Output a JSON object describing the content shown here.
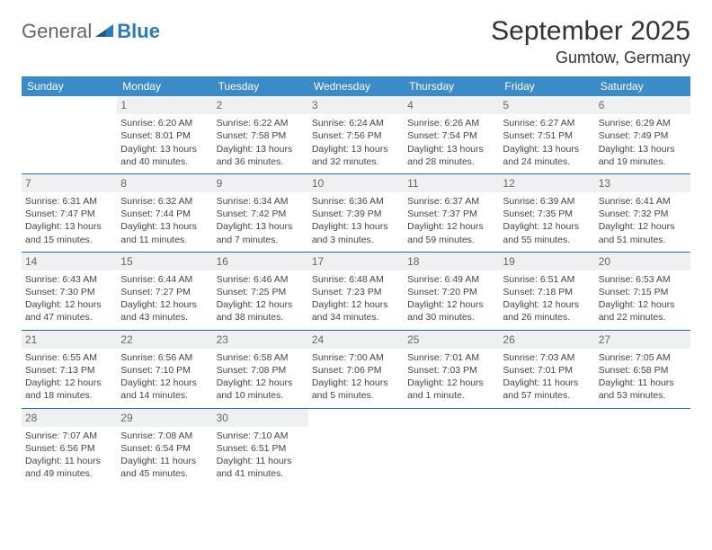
{
  "brand": {
    "part1": "General",
    "part2": "Blue"
  },
  "title": "September 2025",
  "location": "Gumtow, Germany",
  "colors": {
    "header_bg": "#3b8bc9",
    "header_fg": "#ffffff",
    "row_divider": "#2a6a9e",
    "daynum_bg": "#eef0f1",
    "daynum_fg": "#666666",
    "body_text": "#444444",
    "brand_gray": "#666666",
    "brand_blue": "#2a7ab8"
  },
  "weekdays": [
    "Sunday",
    "Monday",
    "Tuesday",
    "Wednesday",
    "Thursday",
    "Friday",
    "Saturday"
  ],
  "weeks": [
    [
      null,
      {
        "n": "1",
        "sunrise": "Sunrise: 6:20 AM",
        "sunset": "Sunset: 8:01 PM",
        "day1": "Daylight: 13 hours",
        "day2": "and 40 minutes."
      },
      {
        "n": "2",
        "sunrise": "Sunrise: 6:22 AM",
        "sunset": "Sunset: 7:58 PM",
        "day1": "Daylight: 13 hours",
        "day2": "and 36 minutes."
      },
      {
        "n": "3",
        "sunrise": "Sunrise: 6:24 AM",
        "sunset": "Sunset: 7:56 PM",
        "day1": "Daylight: 13 hours",
        "day2": "and 32 minutes."
      },
      {
        "n": "4",
        "sunrise": "Sunrise: 6:26 AM",
        "sunset": "Sunset: 7:54 PM",
        "day1": "Daylight: 13 hours",
        "day2": "and 28 minutes."
      },
      {
        "n": "5",
        "sunrise": "Sunrise: 6:27 AM",
        "sunset": "Sunset: 7:51 PM",
        "day1": "Daylight: 13 hours",
        "day2": "and 24 minutes."
      },
      {
        "n": "6",
        "sunrise": "Sunrise: 6:29 AM",
        "sunset": "Sunset: 7:49 PM",
        "day1": "Daylight: 13 hours",
        "day2": "and 19 minutes."
      }
    ],
    [
      {
        "n": "7",
        "sunrise": "Sunrise: 6:31 AM",
        "sunset": "Sunset: 7:47 PM",
        "day1": "Daylight: 13 hours",
        "day2": "and 15 minutes."
      },
      {
        "n": "8",
        "sunrise": "Sunrise: 6:32 AM",
        "sunset": "Sunset: 7:44 PM",
        "day1": "Daylight: 13 hours",
        "day2": "and 11 minutes."
      },
      {
        "n": "9",
        "sunrise": "Sunrise: 6:34 AM",
        "sunset": "Sunset: 7:42 PM",
        "day1": "Daylight: 13 hours",
        "day2": "and 7 minutes."
      },
      {
        "n": "10",
        "sunrise": "Sunrise: 6:36 AM",
        "sunset": "Sunset: 7:39 PM",
        "day1": "Daylight: 13 hours",
        "day2": "and 3 minutes."
      },
      {
        "n": "11",
        "sunrise": "Sunrise: 6:37 AM",
        "sunset": "Sunset: 7:37 PM",
        "day1": "Daylight: 12 hours",
        "day2": "and 59 minutes."
      },
      {
        "n": "12",
        "sunrise": "Sunrise: 6:39 AM",
        "sunset": "Sunset: 7:35 PM",
        "day1": "Daylight: 12 hours",
        "day2": "and 55 minutes."
      },
      {
        "n": "13",
        "sunrise": "Sunrise: 6:41 AM",
        "sunset": "Sunset: 7:32 PM",
        "day1": "Daylight: 12 hours",
        "day2": "and 51 minutes."
      }
    ],
    [
      {
        "n": "14",
        "sunrise": "Sunrise: 6:43 AM",
        "sunset": "Sunset: 7:30 PM",
        "day1": "Daylight: 12 hours",
        "day2": "and 47 minutes."
      },
      {
        "n": "15",
        "sunrise": "Sunrise: 6:44 AM",
        "sunset": "Sunset: 7:27 PM",
        "day1": "Daylight: 12 hours",
        "day2": "and 43 minutes."
      },
      {
        "n": "16",
        "sunrise": "Sunrise: 6:46 AM",
        "sunset": "Sunset: 7:25 PM",
        "day1": "Daylight: 12 hours",
        "day2": "and 38 minutes."
      },
      {
        "n": "17",
        "sunrise": "Sunrise: 6:48 AM",
        "sunset": "Sunset: 7:23 PM",
        "day1": "Daylight: 12 hours",
        "day2": "and 34 minutes."
      },
      {
        "n": "18",
        "sunrise": "Sunrise: 6:49 AM",
        "sunset": "Sunset: 7:20 PM",
        "day1": "Daylight: 12 hours",
        "day2": "and 30 minutes."
      },
      {
        "n": "19",
        "sunrise": "Sunrise: 6:51 AM",
        "sunset": "Sunset: 7:18 PM",
        "day1": "Daylight: 12 hours",
        "day2": "and 26 minutes."
      },
      {
        "n": "20",
        "sunrise": "Sunrise: 6:53 AM",
        "sunset": "Sunset: 7:15 PM",
        "day1": "Daylight: 12 hours",
        "day2": "and 22 minutes."
      }
    ],
    [
      {
        "n": "21",
        "sunrise": "Sunrise: 6:55 AM",
        "sunset": "Sunset: 7:13 PM",
        "day1": "Daylight: 12 hours",
        "day2": "and 18 minutes."
      },
      {
        "n": "22",
        "sunrise": "Sunrise: 6:56 AM",
        "sunset": "Sunset: 7:10 PM",
        "day1": "Daylight: 12 hours",
        "day2": "and 14 minutes."
      },
      {
        "n": "23",
        "sunrise": "Sunrise: 6:58 AM",
        "sunset": "Sunset: 7:08 PM",
        "day1": "Daylight: 12 hours",
        "day2": "and 10 minutes."
      },
      {
        "n": "24",
        "sunrise": "Sunrise: 7:00 AM",
        "sunset": "Sunset: 7:06 PM",
        "day1": "Daylight: 12 hours",
        "day2": "and 5 minutes."
      },
      {
        "n": "25",
        "sunrise": "Sunrise: 7:01 AM",
        "sunset": "Sunset: 7:03 PM",
        "day1": "Daylight: 12 hours",
        "day2": "and 1 minute."
      },
      {
        "n": "26",
        "sunrise": "Sunrise: 7:03 AM",
        "sunset": "Sunset: 7:01 PM",
        "day1": "Daylight: 11 hours",
        "day2": "and 57 minutes."
      },
      {
        "n": "27",
        "sunrise": "Sunrise: 7:05 AM",
        "sunset": "Sunset: 6:58 PM",
        "day1": "Daylight: 11 hours",
        "day2": "and 53 minutes."
      }
    ],
    [
      {
        "n": "28",
        "sunrise": "Sunrise: 7:07 AM",
        "sunset": "Sunset: 6:56 PM",
        "day1": "Daylight: 11 hours",
        "day2": "and 49 minutes."
      },
      {
        "n": "29",
        "sunrise": "Sunrise: 7:08 AM",
        "sunset": "Sunset: 6:54 PM",
        "day1": "Daylight: 11 hours",
        "day2": "and 45 minutes."
      },
      {
        "n": "30",
        "sunrise": "Sunrise: 7:10 AM",
        "sunset": "Sunset: 6:51 PM",
        "day1": "Daylight: 11 hours",
        "day2": "and 41 minutes."
      },
      null,
      null,
      null,
      null
    ]
  ]
}
